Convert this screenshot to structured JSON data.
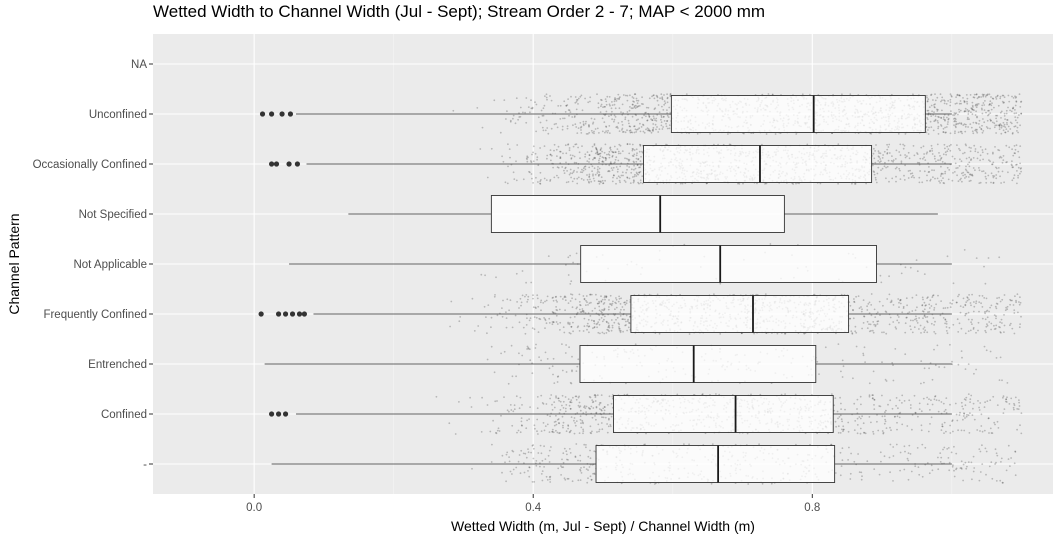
{
  "chart_data": {
    "type": "boxplot",
    "orientation": "horizontal",
    "title": "Wetted Width to Channel Width (Jul - Sept); Stream Order 2 - 7; MAP < 2000 mm",
    "xlabel": "Wetted Width (m, Jul - Sept) / Channel Width (m)",
    "ylabel": "Channel Pattern",
    "xlim": [
      -0.145,
      1.145
    ],
    "xticks": [
      0.0,
      0.4,
      0.8
    ],
    "xtick_labels": [
      "0.0",
      "0.4",
      "0.8"
    ],
    "grid": true,
    "background": "#ebebeb",
    "categories": [
      "NA",
      "Unconfined",
      "Occasionally Confined",
      "Not Specified",
      "Not Applicable",
      "Frequently Confined",
      "Entrenched",
      "Confined",
      "-"
    ],
    "boxes": [
      {
        "category": "NA",
        "min": null,
        "q1": null,
        "median": null,
        "q3": null,
        "max": null,
        "outliers": [],
        "jitter_n": 0,
        "jitter_min": 0,
        "jitter_max": 0
      },
      {
        "category": "Unconfined",
        "min": 0.06,
        "q1": 0.598,
        "median": 0.802,
        "q3": 0.962,
        "max": 1.0,
        "outliers": [
          0.012,
          0.025,
          0.04,
          0.052
        ],
        "jitter_n": 1400,
        "jitter_min": -0.08,
        "jitter_max": 1.1
      },
      {
        "category": "Occasionally Confined",
        "min": 0.075,
        "q1": 0.558,
        "median": 0.725,
        "q3": 0.885,
        "max": 1.0,
        "outliers": [
          0.025,
          0.032,
          0.05,
          0.062
        ],
        "jitter_n": 1300,
        "jitter_min": -0.06,
        "jitter_max": 1.1
      },
      {
        "category": "Not Specified",
        "min": 0.135,
        "q1": 0.34,
        "median": 0.582,
        "q3": 0.76,
        "max": 0.98,
        "outliers": [],
        "jitter_n": 0,
        "jitter_min": 0,
        "jitter_max": 0
      },
      {
        "category": "Not Applicable",
        "min": 0.05,
        "q1": 0.468,
        "median": 0.668,
        "q3": 0.892,
        "max": 1.0,
        "outliers": [],
        "jitter_n": 70,
        "jitter_min": 0.05,
        "jitter_max": 1.08
      },
      {
        "category": "Frequently Confined",
        "min": 0.085,
        "q1": 0.54,
        "median": 0.715,
        "q3": 0.852,
        "max": 1.0,
        "outliers": [
          0.01,
          0.035,
          0.045,
          0.055,
          0.065,
          0.072
        ],
        "jitter_n": 1200,
        "jitter_min": -0.07,
        "jitter_max": 1.1
      },
      {
        "category": "Entrenched",
        "min": 0.015,
        "q1": 0.467,
        "median": 0.63,
        "q3": 0.805,
        "max": 1.0,
        "outliers": [],
        "jitter_n": 220,
        "jitter_min": 0.05,
        "jitter_max": 1.08
      },
      {
        "category": "Confined",
        "min": 0.06,
        "q1": 0.515,
        "median": 0.69,
        "q3": 0.83,
        "max": 1.0,
        "outliers": [
          0.025,
          0.035,
          0.045
        ],
        "jitter_n": 900,
        "jitter_min": -0.03,
        "jitter_max": 1.1
      },
      {
        "category": "-",
        "min": 0.025,
        "q1": 0.49,
        "median": 0.665,
        "q3": 0.832,
        "max": 1.0,
        "outliers": [],
        "jitter_n": 500,
        "jitter_min": -0.02,
        "jitter_max": 1.1
      }
    ]
  }
}
